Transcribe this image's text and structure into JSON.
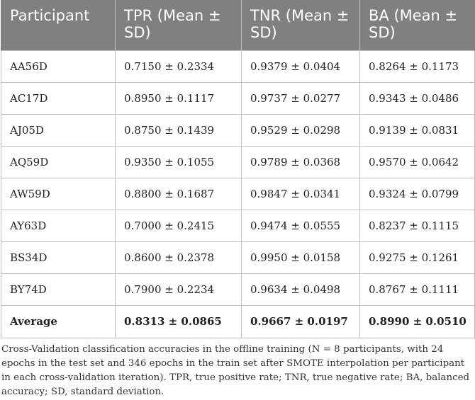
{
  "table": {
    "headers": [
      "Participant",
      "TPR (Mean ± SD)",
      "TNR (Mean ± SD)",
      "BA (Mean ± SD)"
    ],
    "rows": [
      [
        "AA56D",
        "0.7150 ± 0.2334",
        "0.9379 ± 0.0404",
        "0.8264 ± 0.1173"
      ],
      [
        "AC17D",
        "0.8950 ± 0.1117",
        "0.9737 ± 0.0277",
        "0.9343 ± 0.0486"
      ],
      [
        "AJ05D",
        "0.8750 ± 0.1439",
        "0.9529 ± 0.0298",
        "0.9139 ± 0.0831"
      ],
      [
        "AQ59D",
        "0.9350 ± 0.1055",
        "0.9789 ± 0.0368",
        "0.9570 ± 0.0642"
      ],
      [
        "AW59D",
        "0.8800 ± 0.1687",
        "0.9847 ± 0.0341",
        "0.9324 ± 0.0799"
      ],
      [
        "AY63D",
        "0.7000 ± 0.2415",
        "0.9474 ± 0.0555",
        "0.8237 ± 0.1115"
      ],
      [
        "BS34D",
        "0.8600 ± 0.2378",
        "0.9950 ± 0.0158",
        "0.9275 ± 0.1261"
      ],
      [
        "BY74D",
        "0.7900 ± 0.2234",
        "0.9634 ± 0.0498",
        "0.8767 ± 0.1111"
      ]
    ],
    "average": [
      "Average",
      "0.8313 ± 0.0865",
      "0.9667 ± 0.0197",
      "0.8990 ± 0.0510"
    ]
  },
  "caption": "Cross-Validation classification accuracies in the offline training (N = 8 participants, with 24 epochs in the test set and 346 epochs in the train set after SMOTE interpolation per participant in each cross-validation iteration). TPR, true positive rate; TNR, true negative rate; BA, balanced accuracy; SD, standard deviation."
}
